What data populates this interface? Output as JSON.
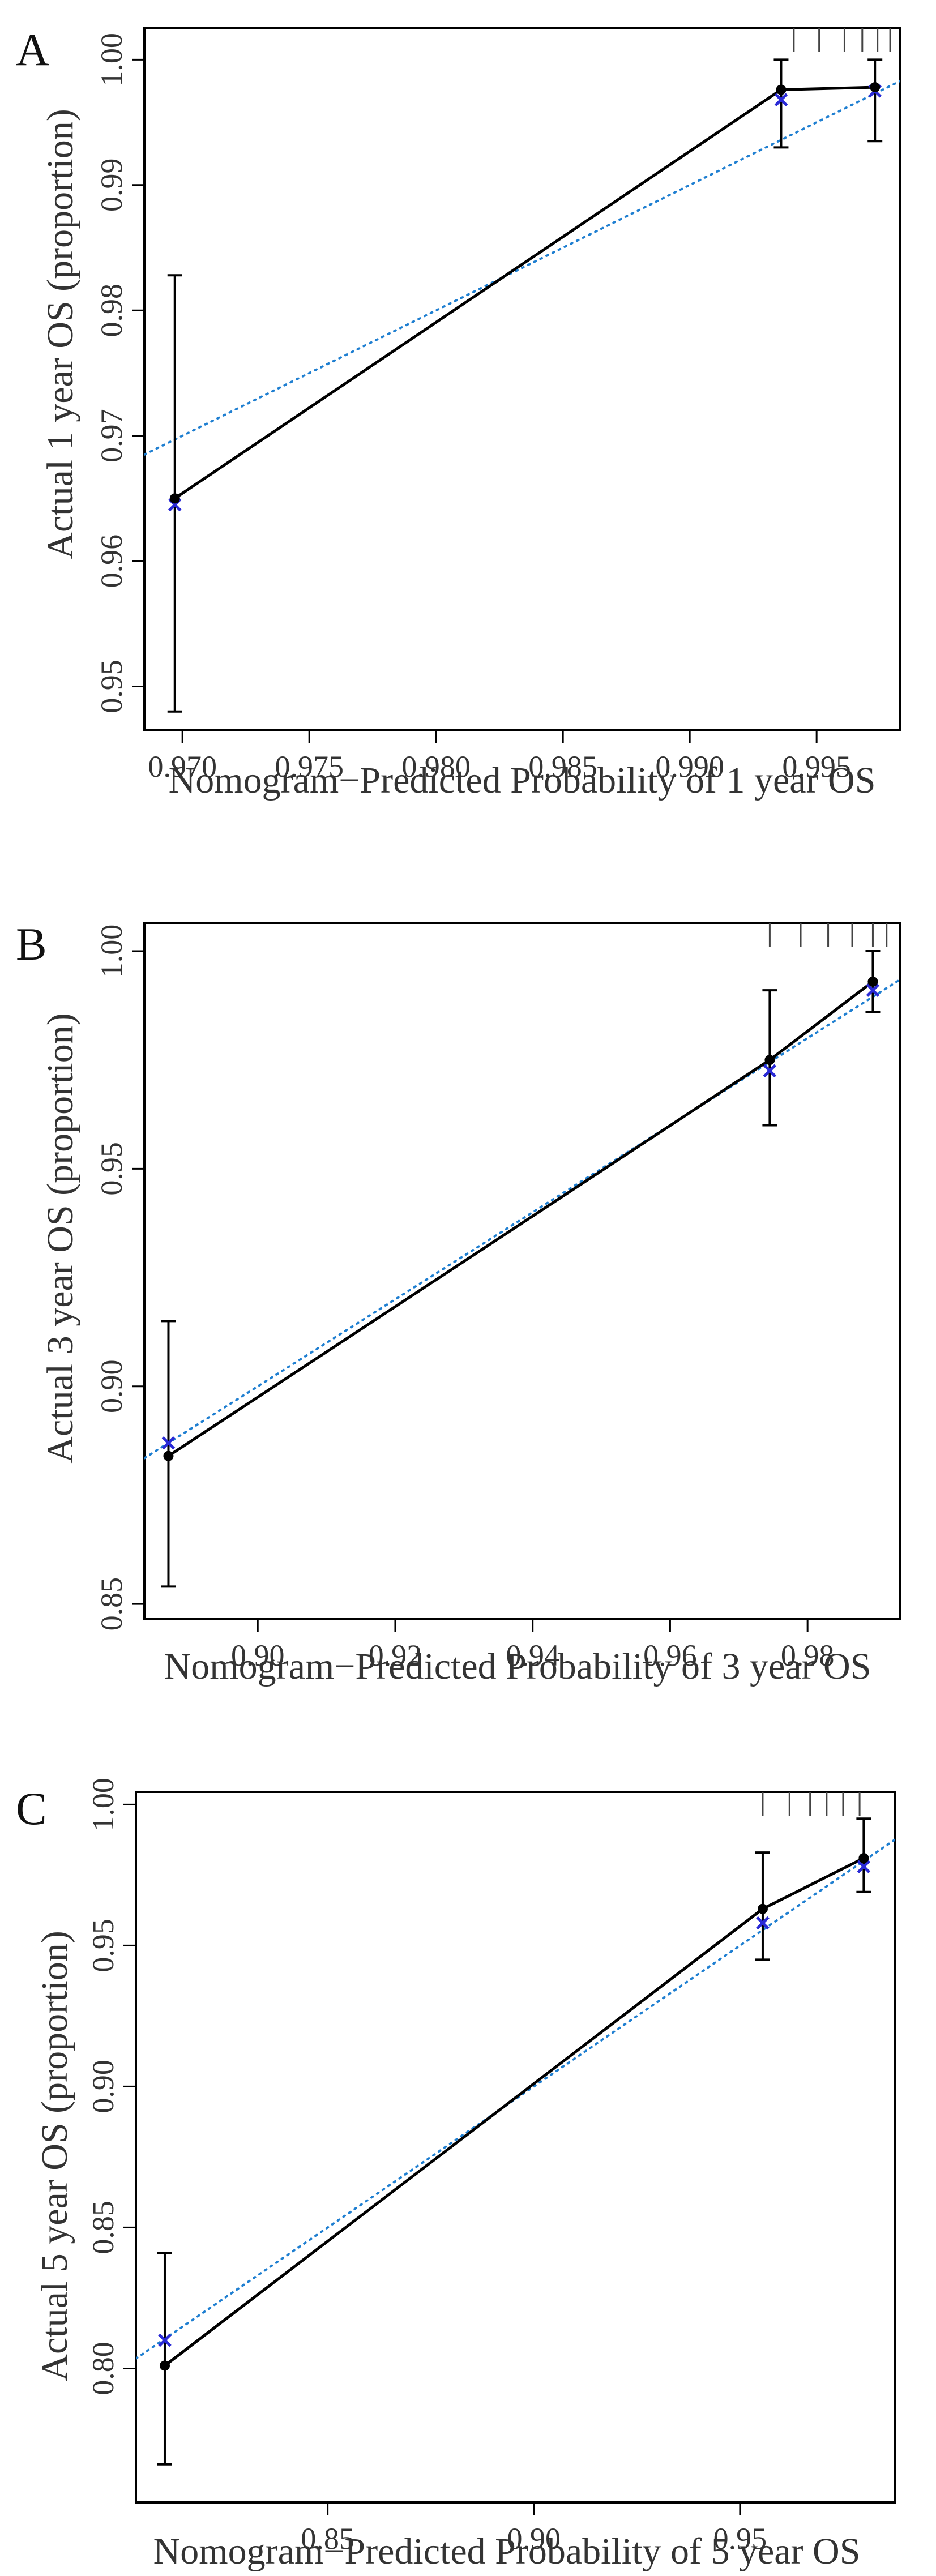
{
  "colors": {
    "observed": "#000000",
    "ideal": "#1f7fd1",
    "bias_corrected": "#2a2ad6",
    "frame": "#000000",
    "text": "#333333"
  },
  "chart_data": [
    {
      "type": "line",
      "panel": "A",
      "title": "",
      "xlabel": "Nomogram−Predicted Probability of 1 year OS",
      "ylabel": "Actual 1 year OS (proportion)",
      "xlim": [
        0.9685,
        0.9983
      ],
      "ylim": [
        0.9465,
        1.0025
      ],
      "xticks": [
        0.97,
        0.975,
        0.98,
        0.985,
        0.99,
        0.995
      ],
      "xtick_labels": [
        "0.970",
        "0.975",
        "0.980",
        "0.985",
        "0.990",
        "0.995"
      ],
      "yticks": [
        0.95,
        0.96,
        0.97,
        0.98,
        0.99,
        1.0
      ],
      "ytick_labels": [
        "0.95",
        "0.96",
        "0.97",
        "0.98",
        "0.99",
        "1.00"
      ],
      "observed": {
        "x": [
          0.9697,
          0.9936,
          0.9973
        ],
        "y": [
          0.965,
          0.9976,
          0.9978
        ],
        "ci_lower": [
          0.948,
          0.993,
          0.9935
        ],
        "ci_upper": [
          0.9828,
          1.0,
          1.0
        ]
      },
      "bias_corrected": {
        "x": [
          0.9697,
          0.9936,
          0.9973
        ],
        "y": [
          0.9645,
          0.9968,
          0.9975
        ]
      },
      "ideal_line": {
        "slope": 1,
        "intercept": 0
      },
      "rug": [
        0.9941,
        0.9951,
        0.9961,
        0.9968,
        0.9974,
        0.9979
      ]
    },
    {
      "type": "line",
      "panel": "B",
      "title": "",
      "xlabel": "Nomogram−Predicted Probability of 3 year OS",
      "ylabel": "Actual 3 year OS (proportion)",
      "xlim": [
        0.8835,
        0.9935
      ],
      "ylim": [
        0.8465,
        1.0065
      ],
      "xticks": [
        0.9,
        0.92,
        0.94,
        0.96,
        0.98
      ],
      "xtick_labels": [
        "0.90",
        "0.92",
        "0.94",
        "0.96",
        "0.98"
      ],
      "yticks": [
        0.85,
        0.9,
        0.95,
        1.0
      ],
      "ytick_labels": [
        "0.85",
        "0.90",
        "0.95",
        "1.00"
      ],
      "observed": {
        "x": [
          0.887,
          0.9745,
          0.9895
        ],
        "y": [
          0.884,
          0.975,
          0.993
        ],
        "ci_lower": [
          0.854,
          0.96,
          0.986
        ],
        "ci_upper": [
          0.915,
          0.991,
          1.0
        ]
      },
      "bias_corrected": {
        "x": [
          0.887,
          0.9745,
          0.9895
        ],
        "y": [
          0.887,
          0.9725,
          0.991
        ]
      },
      "ideal_line": {
        "slope": 1,
        "intercept": 0
      },
      "rug": [
        0.9745,
        0.979,
        0.983,
        0.9865,
        0.9895,
        0.9915
      ]
    },
    {
      "type": "line",
      "panel": "C",
      "title": "",
      "xlabel": "Nomogram−Predicted Probability of 5 year OS",
      "ylabel": "Actual 5 year OS (proportion)",
      "xlim": [
        0.8035,
        0.9875
      ],
      "ylim": [
        0.7525,
        1.0045
      ],
      "xticks": [
        0.85,
        0.9,
        0.95
      ],
      "xtick_labels": [
        "0.85",
        "0.90",
        "0.95"
      ],
      "yticks": [
        0.8,
        0.85,
        0.9,
        0.95,
        1.0
      ],
      "ytick_labels": [
        "0.80",
        "0.85",
        "0.90",
        "0.95",
        "1.00"
      ],
      "observed": {
        "x": [
          0.8105,
          0.9555,
          0.98
        ],
        "y": [
          0.801,
          0.963,
          0.981
        ],
        "ci_lower": [
          0.766,
          0.945,
          0.969
        ],
        "ci_upper": [
          0.841,
          0.983,
          0.995
        ]
      },
      "bias_corrected": {
        "x": [
          0.8105,
          0.9555,
          0.98
        ],
        "y": [
          0.81,
          0.958,
          0.978
        ]
      },
      "ideal_line": {
        "slope": 1,
        "intercept": 0
      },
      "rug": [
        0.9555,
        0.962,
        0.967,
        0.971,
        0.975,
        0.979
      ]
    }
  ]
}
